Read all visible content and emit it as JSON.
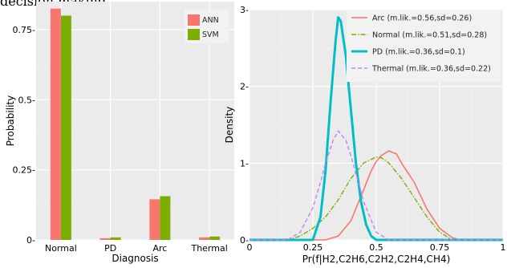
{
  "top_text": "decision making.",
  "chart_data": [
    {
      "type": "bar",
      "categories": [
        "Normal",
        "PD",
        "Arc",
        "Thermal"
      ],
      "series": [
        {
          "name": "ANN",
          "color": "#F8766D",
          "values": [
            0.825,
            0.006,
            0.145,
            0.009
          ]
        },
        {
          "name": "SVM",
          "color": "#7CAE00",
          "values": [
            0.8,
            0.009,
            0.156,
            0.012
          ]
        }
      ],
      "xlabel": "Diagnosis",
      "ylabel": "Probability",
      "ylim": [
        0,
        0.85
      ],
      "yticks": [
        0,
        0.25,
        0.5,
        0.75
      ],
      "ytick_labels": [
        "0-",
        "0.25-",
        "0.5-",
        "0.75-"
      ],
      "grid": true,
      "legend_position": "top-right"
    },
    {
      "type": "line",
      "xlabel": "Pr(f|H2,C2H6,C2H2,C2H4,CH4)",
      "ylabel": "Density",
      "xlim": [
        0,
        1
      ],
      "ylim": [
        0,
        3
      ],
      "xticks": [
        0,
        0.25,
        0.5,
        0.75,
        1
      ],
      "xtick_labels": [
        "0",
        "0.25",
        "0.5",
        "0.75",
        "1"
      ],
      "yticks": [
        0,
        1,
        2,
        3
      ],
      "ytick_labels": [
        "0-",
        "1-",
        "2-",
        "3-"
      ],
      "grid": true,
      "legend_position": "top-right",
      "series": [
        {
          "name": "Arc (m.lik.=0.56,sd=0.26)",
          "color": "#F8766D",
          "dash": "solid",
          "width": 1.6,
          "x": [
            0.3,
            0.35,
            0.4,
            0.45,
            0.48,
            0.5,
            0.52,
            0.55,
            0.58,
            0.6,
            0.62,
            0.65,
            0.7,
            0.75,
            0.8,
            0.83
          ],
          "y": [
            0,
            0.05,
            0.25,
            0.65,
            0.9,
            1.02,
            1.1,
            1.16,
            1.12,
            1.0,
            0.9,
            0.75,
            0.4,
            0.15,
            0.03,
            0
          ]
        },
        {
          "name": "Normal (m.lik.=0.51,sd=0.28)",
          "color": "#7CAE00",
          "dash": "dashdot",
          "width": 1.4,
          "x": [
            0.15,
            0.2,
            0.25,
            0.3,
            0.35,
            0.4,
            0.45,
            0.5,
            0.52,
            0.55,
            0.6,
            0.65,
            0.7,
            0.75,
            0.8
          ],
          "y": [
            0,
            0.05,
            0.15,
            0.3,
            0.52,
            0.8,
            1.0,
            1.08,
            1.07,
            1.0,
            0.8,
            0.55,
            0.3,
            0.1,
            0
          ]
        },
        {
          "name": "PD (m.lik.=0.36,sd=0.1)",
          "color": "#00BFC4",
          "dash": "solid",
          "width": 3,
          "x": [
            0.25,
            0.28,
            0.3,
            0.32,
            0.34,
            0.35,
            0.36,
            0.38,
            0.4,
            0.42,
            0.44,
            0.46,
            0.48,
            0.5
          ],
          "y": [
            0,
            0.3,
            0.9,
            1.8,
            2.6,
            2.9,
            2.85,
            2.4,
            1.7,
            1.0,
            0.5,
            0.2,
            0.05,
            0
          ]
        },
        {
          "name": "Thermal (m.lik.=0.36,sd=0.22)",
          "color": "#C77CFF",
          "dash": "dashed",
          "width": 1.4,
          "x": [
            0.15,
            0.2,
            0.25,
            0.28,
            0.3,
            0.33,
            0.35,
            0.38,
            0.4,
            0.43,
            0.45,
            0.5,
            0.55
          ],
          "y": [
            0,
            0.1,
            0.42,
            0.75,
            1.0,
            1.3,
            1.42,
            1.3,
            1.1,
            0.75,
            0.5,
            0.1,
            0
          ]
        }
      ]
    }
  ]
}
